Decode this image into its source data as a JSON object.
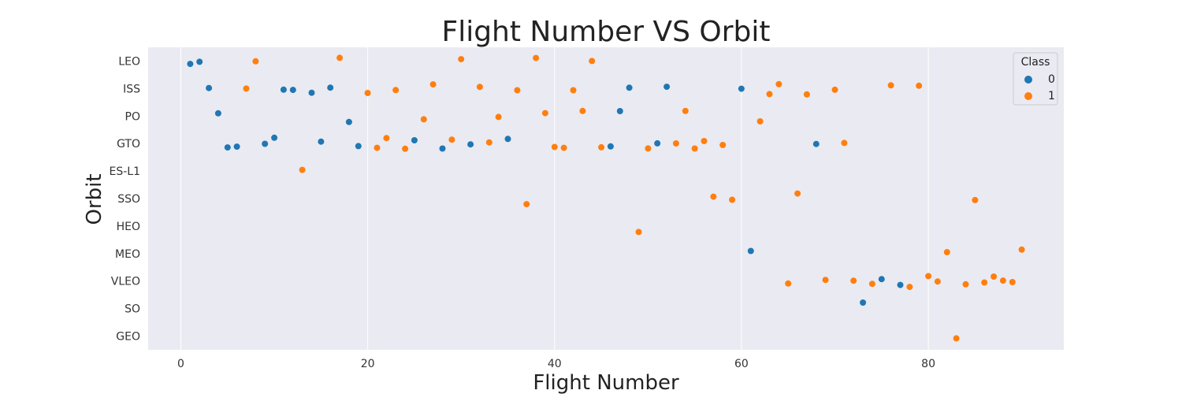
{
  "chart_data": {
    "type": "scatter",
    "title": "Flight Number VS Orbit",
    "xlabel": "Flight Number",
    "ylabel": "Orbit",
    "xlim": [
      -3.5,
      94.5
    ],
    "x_ticks": [
      0,
      20,
      40,
      60,
      80
    ],
    "categories_y": [
      "LEO",
      "ISS",
      "PO",
      "GTO",
      "ES-L1",
      "SSO",
      "HEO",
      "MEO",
      "VLEO",
      "SO",
      "GEO"
    ],
    "grid": true,
    "legend": {
      "title": "Class",
      "position": "top-right",
      "entries": [
        "0",
        "1"
      ]
    },
    "colors": {
      "0": "#1f77b4",
      "1": "#ff7f0e",
      "background": "#eaeaf2",
      "grid": "#ffffff"
    },
    "series": [
      {
        "name": "0",
        "points": [
          {
            "x": 1,
            "y": "LEO"
          },
          {
            "x": 2,
            "y": "LEO"
          },
          {
            "x": 3,
            "y": "ISS"
          },
          {
            "x": 11,
            "y": "ISS"
          },
          {
            "x": 12,
            "y": "ISS"
          },
          {
            "x": 14,
            "y": "ISS"
          },
          {
            "x": 16,
            "y": "ISS"
          },
          {
            "x": 48,
            "y": "ISS"
          },
          {
            "x": 52,
            "y": "ISS"
          },
          {
            "x": 60,
            "y": "ISS"
          },
          {
            "x": 4,
            "y": "PO"
          },
          {
            "x": 18,
            "y": "PO"
          },
          {
            "x": 47,
            "y": "PO"
          },
          {
            "x": 5,
            "y": "GTO"
          },
          {
            "x": 6,
            "y": "GTO"
          },
          {
            "x": 9,
            "y": "GTO"
          },
          {
            "x": 10,
            "y": "GTO"
          },
          {
            "x": 15,
            "y": "GTO"
          },
          {
            "x": 19,
            "y": "GTO"
          },
          {
            "x": 25,
            "y": "GTO"
          },
          {
            "x": 28,
            "y": "GTO"
          },
          {
            "x": 31,
            "y": "GTO"
          },
          {
            "x": 35,
            "y": "GTO"
          },
          {
            "x": 46,
            "y": "GTO"
          },
          {
            "x": 51,
            "y": "GTO"
          },
          {
            "x": 68,
            "y": "GTO"
          },
          {
            "x": 61,
            "y": "MEO"
          },
          {
            "x": 75,
            "y": "VLEO"
          },
          {
            "x": 77,
            "y": "VLEO"
          },
          {
            "x": 73,
            "y": "SO"
          }
        ]
      },
      {
        "name": "1",
        "points": [
          {
            "x": 8,
            "y": "LEO"
          },
          {
            "x": 17,
            "y": "LEO"
          },
          {
            "x": 30,
            "y": "LEO"
          },
          {
            "x": 38,
            "y": "LEO"
          },
          {
            "x": 44,
            "y": "LEO"
          },
          {
            "x": 7,
            "y": "ISS"
          },
          {
            "x": 20,
            "y": "ISS"
          },
          {
            "x": 23,
            "y": "ISS"
          },
          {
            "x": 27,
            "y": "ISS"
          },
          {
            "x": 32,
            "y": "ISS"
          },
          {
            "x": 36,
            "y": "ISS"
          },
          {
            "x": 42,
            "y": "ISS"
          },
          {
            "x": 63,
            "y": "ISS"
          },
          {
            "x": 64,
            "y": "ISS"
          },
          {
            "x": 67,
            "y": "ISS"
          },
          {
            "x": 70,
            "y": "ISS"
          },
          {
            "x": 76,
            "y": "ISS"
          },
          {
            "x": 79,
            "y": "ISS"
          },
          {
            "x": 26,
            "y": "PO"
          },
          {
            "x": 34,
            "y": "PO"
          },
          {
            "x": 39,
            "y": "PO"
          },
          {
            "x": 43,
            "y": "PO"
          },
          {
            "x": 54,
            "y": "PO"
          },
          {
            "x": 62,
            "y": "PO"
          },
          {
            "x": 21,
            "y": "GTO"
          },
          {
            "x": 22,
            "y": "GTO"
          },
          {
            "x": 24,
            "y": "GTO"
          },
          {
            "x": 29,
            "y": "GTO"
          },
          {
            "x": 33,
            "y": "GTO"
          },
          {
            "x": 40,
            "y": "GTO"
          },
          {
            "x": 41,
            "y": "GTO"
          },
          {
            "x": 45,
            "y": "GTO"
          },
          {
            "x": 50,
            "y": "GTO"
          },
          {
            "x": 53,
            "y": "GTO"
          },
          {
            "x": 55,
            "y": "GTO"
          },
          {
            "x": 56,
            "y": "GTO"
          },
          {
            "x": 58,
            "y": "GTO"
          },
          {
            "x": 71,
            "y": "GTO"
          },
          {
            "x": 13,
            "y": "ES-L1"
          },
          {
            "x": 37,
            "y": "SSO"
          },
          {
            "x": 57,
            "y": "SSO"
          },
          {
            "x": 59,
            "y": "SSO"
          },
          {
            "x": 66,
            "y": "SSO"
          },
          {
            "x": 85,
            "y": "SSO"
          },
          {
            "x": 49,
            "y": "HEO"
          },
          {
            "x": 82,
            "y": "MEO"
          },
          {
            "x": 90,
            "y": "MEO"
          },
          {
            "x": 65,
            "y": "VLEO"
          },
          {
            "x": 69,
            "y": "VLEO"
          },
          {
            "x": 72,
            "y": "VLEO"
          },
          {
            "x": 74,
            "y": "VLEO"
          },
          {
            "x": 78,
            "y": "VLEO"
          },
          {
            "x": 80,
            "y": "VLEO"
          },
          {
            "x": 81,
            "y": "VLEO"
          },
          {
            "x": 84,
            "y": "VLEO"
          },
          {
            "x": 86,
            "y": "VLEO"
          },
          {
            "x": 87,
            "y": "VLEO"
          },
          {
            "x": 88,
            "y": "VLEO"
          },
          {
            "x": 89,
            "y": "VLEO"
          },
          {
            "x": 83,
            "y": "GEO"
          }
        ]
      }
    ]
  }
}
